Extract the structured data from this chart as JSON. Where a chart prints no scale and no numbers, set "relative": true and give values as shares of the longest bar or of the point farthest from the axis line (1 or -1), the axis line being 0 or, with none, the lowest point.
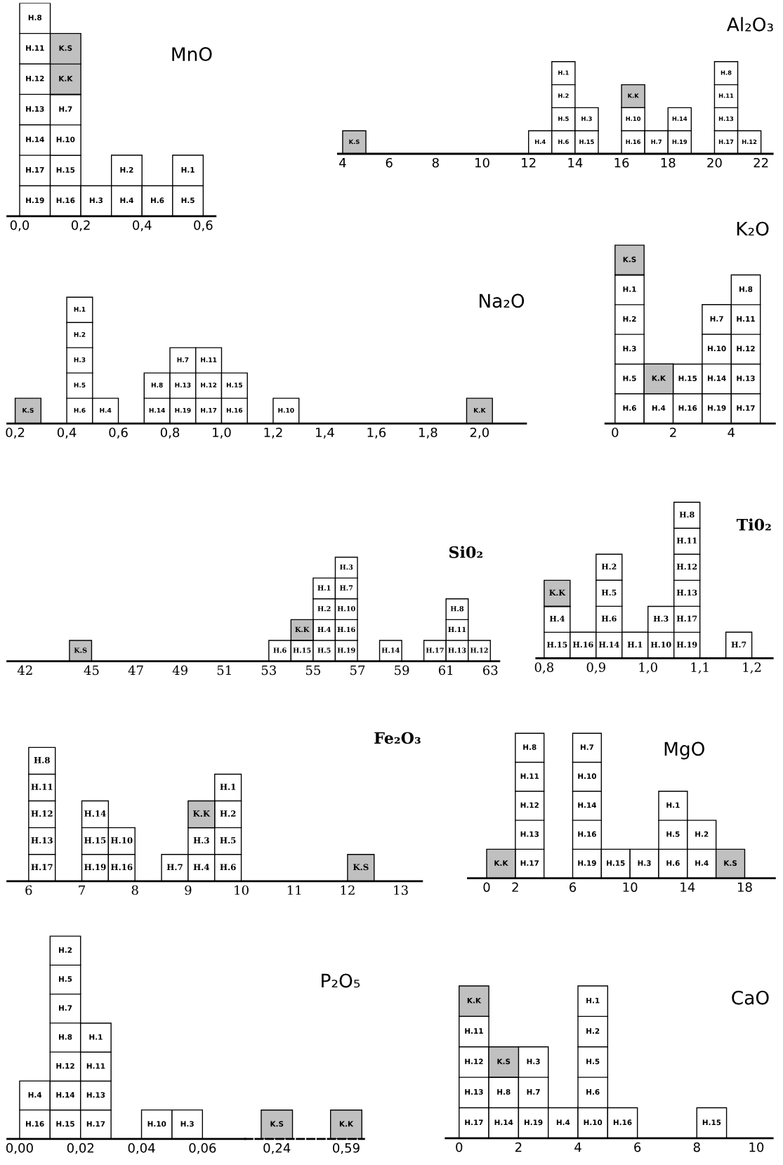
{
  "chart_data": [
    {
      "type": "bar",
      "title": "MnO",
      "stacked": true,
      "relative": true,
      "x": [
        0.05,
        0.15,
        0.25,
        0.35,
        0.45,
        0.55
      ],
      "series": [
        {
          "color": "#ffffff",
          "values": [
            1,
            0.571,
            0.143,
            0.286,
            0.143,
            0.286
          ]
        },
        {
          "color": "#c0c0c0",
          "values": [
            null,
            0.286,
            null,
            null,
            null,
            null
          ]
        }
      ],
      "xlim": [
        -0.04,
        0.64
      ],
      "xticks": [
        {
          "value": 0,
          "label": "0,0"
        },
        {
          "value": 0.2,
          "label": "0,2"
        },
        {
          "value": 0.4,
          "label": "0,4"
        },
        {
          "value": 0.6,
          "label": "0,6"
        }
      ],
      "annotations": [
        "H.19",
        "H.17",
        "H.14",
        "H.13",
        "H.12",
        "H.11",
        "H.8",
        "H.16",
        "H.15",
        "H.10",
        "H.7",
        "K.K",
        "K.S",
        "H.3",
        "H.4",
        "H.2",
        "H.6",
        "H.5",
        "H.1"
      ]
    },
    {
      "type": "bar",
      "title": "Al₂O₃",
      "stacked": true,
      "relative": true,
      "x": [
        4.5,
        12.5,
        13.5,
        14.5,
        16.5,
        17.5,
        18.5,
        20.5,
        21.5
      ],
      "series": [
        {
          "color": "#ffffff",
          "values": [
            null,
            0.25,
            1,
            0.5,
            0.5,
            0.25,
            0.5,
            1,
            0.25
          ]
        },
        {
          "color": "#c0c0c0",
          "values": [
            0.25,
            null,
            null,
            null,
            0.25,
            null,
            null,
            null,
            null
          ]
        }
      ],
      "xlim": [
        3.8,
        22.5
      ],
      "xticks": [
        4,
        6,
        8,
        10,
        12,
        14,
        16,
        18,
        20,
        22
      ],
      "annotations": [
        "K.S",
        "H.4",
        "H.6",
        "H.5",
        "H.2",
        "H.1",
        "H.15",
        "H.3",
        "H.16",
        "H.10",
        "K.K",
        "H.7",
        "H.19",
        "H.14",
        "H.17",
        "H.13",
        "H.11",
        "H.8",
        "H.12"
      ]
    },
    {
      "type": "bar",
      "title": "Na₂O",
      "stacked": true,
      "relative": true,
      "x": [
        0.25,
        0.45,
        0.55,
        0.75,
        0.85,
        0.95,
        1.05,
        1.25,
        2.0
      ],
      "series": [
        {
          "color": "#ffffff",
          "values": [
            null,
            1,
            0.2,
            0.4,
            0.6,
            0.6,
            0.4,
            0.2,
            null
          ]
        },
        {
          "color": "#c0c0c0",
          "values": [
            0.2,
            null,
            null,
            null,
            null,
            null,
            null,
            null,
            0.2
          ]
        }
      ],
      "xlim": [
        0.17,
        2.18
      ],
      "xticks": [
        {
          "value": 0.2,
          "label": "0,2"
        },
        {
          "value": 0.4,
          "label": "0,4"
        },
        {
          "value": 0.6,
          "label": "0,6"
        },
        {
          "value": 0.8,
          "label": "0,8"
        },
        {
          "value": 1.0,
          "label": "1,0"
        },
        {
          "value": 1.2,
          "label": "1,2"
        },
        {
          "value": 1.4,
          "label": "1,4"
        },
        {
          "value": 1.6,
          "label": "1,6"
        },
        {
          "value": 1.8,
          "label": "1,8"
        },
        {
          "value": 2.0,
          "label": "2,0"
        }
      ],
      "annotations": [
        "K.S",
        "H.6",
        "H.5",
        "H.3",
        "H.2",
        "H.1",
        "H.4",
        "H.14",
        "H.8",
        "H.19",
        "H.13",
        "H.7",
        "H.17",
        "H.12",
        "H.11",
        "H.16",
        "H.15",
        "H.10",
        "K.K"
      ]
    },
    {
      "type": "bar",
      "title": "K₂O",
      "stacked": true,
      "relative": true,
      "x": [
        0.5,
        1.5,
        2.5,
        3.5,
        4.5
      ],
      "series": [
        {
          "color": "#ffffff",
          "values": [
            0.833,
            0.167,
            0.333,
            0.667,
            0.833
          ]
        },
        {
          "color": "#c0c0c0",
          "values": [
            0.167,
            0.167,
            null,
            null,
            null
          ]
        }
      ],
      "xlim": [
        -0.33,
        5.5
      ],
      "xticks": [
        0,
        2,
        4
      ],
      "annotations": [
        "H.6",
        "H.5",
        "H.3",
        "H.2",
        "H.1",
        "K.S",
        "H.4",
        "K.K",
        "H.16",
        "H.15",
        "H.19",
        "H.14",
        "H.10",
        "H.7",
        "H.17",
        "H.13",
        "H.12",
        "H.11",
        "H.8"
      ]
    },
    {
      "type": "bar",
      "title": "Si0₂",
      "stacked": true,
      "relative": true,
      "x": [
        44.5,
        53.5,
        54.5,
        55.5,
        56.5,
        58.5,
        60.5,
        61.5,
        62.5
      ],
      "series": [
        {
          "color": "#ffffff",
          "values": [
            null,
            0.2,
            0.2,
            0.8,
            1,
            0.2,
            0.2,
            0.6,
            0.2
          ]
        },
        {
          "color": "#c0c0c0",
          "values": [
            0.2,
            null,
            0.2,
            null,
            null,
            null,
            null,
            null,
            null
          ]
        }
      ],
      "xlim": [
        41.2,
        63.4
      ],
      "xticks": [
        42,
        45,
        47,
        49,
        51,
        53,
        55,
        57,
        59,
        61,
        63
      ],
      "annotations": [
        "K.S",
        "H.6",
        "H.15",
        "K.K",
        "H.5",
        "H.4",
        "H.2",
        "H.1",
        "H.19",
        "H.16",
        "H.10",
        "H.7",
        "H.3",
        "H.14",
        "H.17",
        "H.13",
        "H.11",
        "H.8",
        "H.12"
      ]
    },
    {
      "type": "bar",
      "title": "Ti0₂",
      "stacked": true,
      "relative": true,
      "x": [
        0.825,
        0.875,
        0.925,
        0.975,
        1.025,
        1.075,
        1.175
      ],
      "series": [
        {
          "color": "#ffffff",
          "values": [
            0.333,
            0.167,
            0.667,
            0.167,
            0.333,
            1,
            0.167
          ]
        },
        {
          "color": "#c0c0c0",
          "values": [
            0.167,
            null,
            null,
            null,
            null,
            null,
            null
          ]
        }
      ],
      "xlim": [
        0.785,
        1.24
      ],
      "xticks": [
        {
          "value": 0.8,
          "label": "0,8"
        },
        {
          "value": 0.9,
          "label": "0,9"
        },
        {
          "value": 1.0,
          "label": "1,0"
        },
        {
          "value": 1.1,
          "label": "1,1"
        },
        {
          "value": 1.2,
          "label": "1,2"
        }
      ],
      "annotations": [
        "H.15",
        "H.4",
        "K.K",
        "H.16",
        "H.14",
        "H.6",
        "H.5",
        "H.2",
        "H.1",
        "H.10",
        "H.3",
        "H.19",
        "H.17",
        "H.13",
        "H.12",
        "H.11",
        "H.8",
        "H.7"
      ]
    },
    {
      "type": "bar",
      "title": "Fe₂O₃",
      "stacked": true,
      "relative": true,
      "x": [
        6.25,
        7.25,
        7.75,
        8.75,
        9.25,
        9.75,
        12.25
      ],
      "series": [
        {
          "color": "#ffffff",
          "values": [
            1,
            0.6,
            0.4,
            0.2,
            0.4,
            0.8,
            null
          ]
        },
        {
          "color": "#c0c0c0",
          "values": [
            null,
            null,
            null,
            null,
            0.2,
            null,
            0.2
          ]
        }
      ],
      "xlim": [
        5.6,
        13.4
      ],
      "xticks": [
        6,
        7,
        8,
        9,
        10,
        11,
        12,
        13
      ],
      "annotations": [
        "H.17",
        "H.13",
        "H.12",
        "H.11",
        "H.8",
        "H.19",
        "H.15",
        "H.14",
        "H.16",
        "H.10",
        "H.7",
        "H.4",
        "H.3",
        "K.K",
        "H.6",
        "H.5",
        "H.2",
        "H.1",
        "K.S"
      ]
    },
    {
      "type": "bar",
      "title": "MgO",
      "stacked": true,
      "relative": true,
      "x": [
        1,
        3,
        7,
        9,
        11,
        13,
        15,
        17
      ],
      "series": [
        {
          "color": "#ffffff",
          "values": [
            null,
            1,
            1,
            0.2,
            0.2,
            0.6,
            0.4,
            null
          ]
        },
        {
          "color": "#c0c0c0",
          "values": [
            0.2,
            null,
            null,
            null,
            null,
            null,
            null,
            0.2
          ]
        }
      ],
      "xlim": [
        -1.3,
        20.1
      ],
      "xticks": [
        0,
        2,
        6,
        10,
        14,
        18
      ],
      "annotations": [
        "K.K",
        "H.17",
        "H.13",
        "H.12",
        "H.11",
        "H.8",
        "H.19",
        "H.16",
        "H.14",
        "H.10",
        "H.7",
        "H.15",
        "H.3",
        "H.6",
        "H.5",
        "H.1",
        "H.4",
        "H.2",
        "K.S"
      ]
    },
    {
      "type": "bar",
      "stacked": true,
      "relative": true,
      "x": [
        0.005,
        0.015,
        0.025,
        0.045,
        0.055
      ],
      "series": [
        {
          "color": "#ffffff",
          "values": [
            0.286,
            1,
            0.571,
            0.143,
            0.143
          ]
        }
      ],
      "xlim": [
        -0.004,
        0.074
      ],
      "xticks": [
        {
          "value": 0,
          "label": "0,00"
        },
        {
          "value": 0.02,
          "label": "0,02"
        },
        {
          "value": 0.04,
          "label": "0,04"
        },
        {
          "value": 0.06,
          "label": "0,06"
        }
      ],
      "annotations": [
        "H.16",
        "H.4",
        "H.15",
        "H.14",
        "H.12",
        "H.8",
        "H.7",
        "H.5",
        "H.2",
        "H.17",
        "H.13",
        "H.11",
        "H.1",
        "H.10",
        "H.3"
      ]
    },
    {
      "type": "bar",
      "title": "P₂O₅",
      "stacked": true,
      "relative": true,
      "x": [
        0.24,
        0.59
      ],
      "series": [
        {
          "color": "#c0c0c0",
          "values": [
            1,
            1
          ]
        }
      ],
      "xlim": [
        0.08,
        0.68
      ],
      "xticks": [
        {
          "value": 0.24,
          "label": "0,24"
        },
        {
          "value": 0.59,
          "label": "0,59"
        }
      ],
      "annotations": [
        "K.S",
        "K.K"
      ]
    },
    {
      "type": "bar",
      "title": "CaO",
      "stacked": true,
      "relative": true,
      "x": [
        0.5,
        1.5,
        2.5,
        3.5,
        4.5,
        5.5,
        8.5
      ],
      "series": [
        {
          "color": "#ffffff",
          "values": [
            0.8,
            0.4,
            0.6,
            0.2,
            1,
            0.2,
            0.2
          ]
        },
        {
          "color": "#c0c0c0",
          "values": [
            0.2,
            0.2,
            null,
            null,
            null,
            null,
            null
          ]
        }
      ],
      "xlim": [
        -0.45,
        10.55
      ],
      "xticks": [
        0,
        2,
        4,
        6,
        8,
        10
      ],
      "annotations": [
        "H.17",
        "H.13",
        "H.12",
        "H.11",
        "K.K",
        "H.14",
        "H.8",
        "K.S",
        "H.19",
        "H.7",
        "H.3",
        "H.4",
        "H.10",
        "H.6",
        "H.5",
        "H.2",
        "H.1",
        "H.16",
        "H.15"
      ]
    }
  ]
}
